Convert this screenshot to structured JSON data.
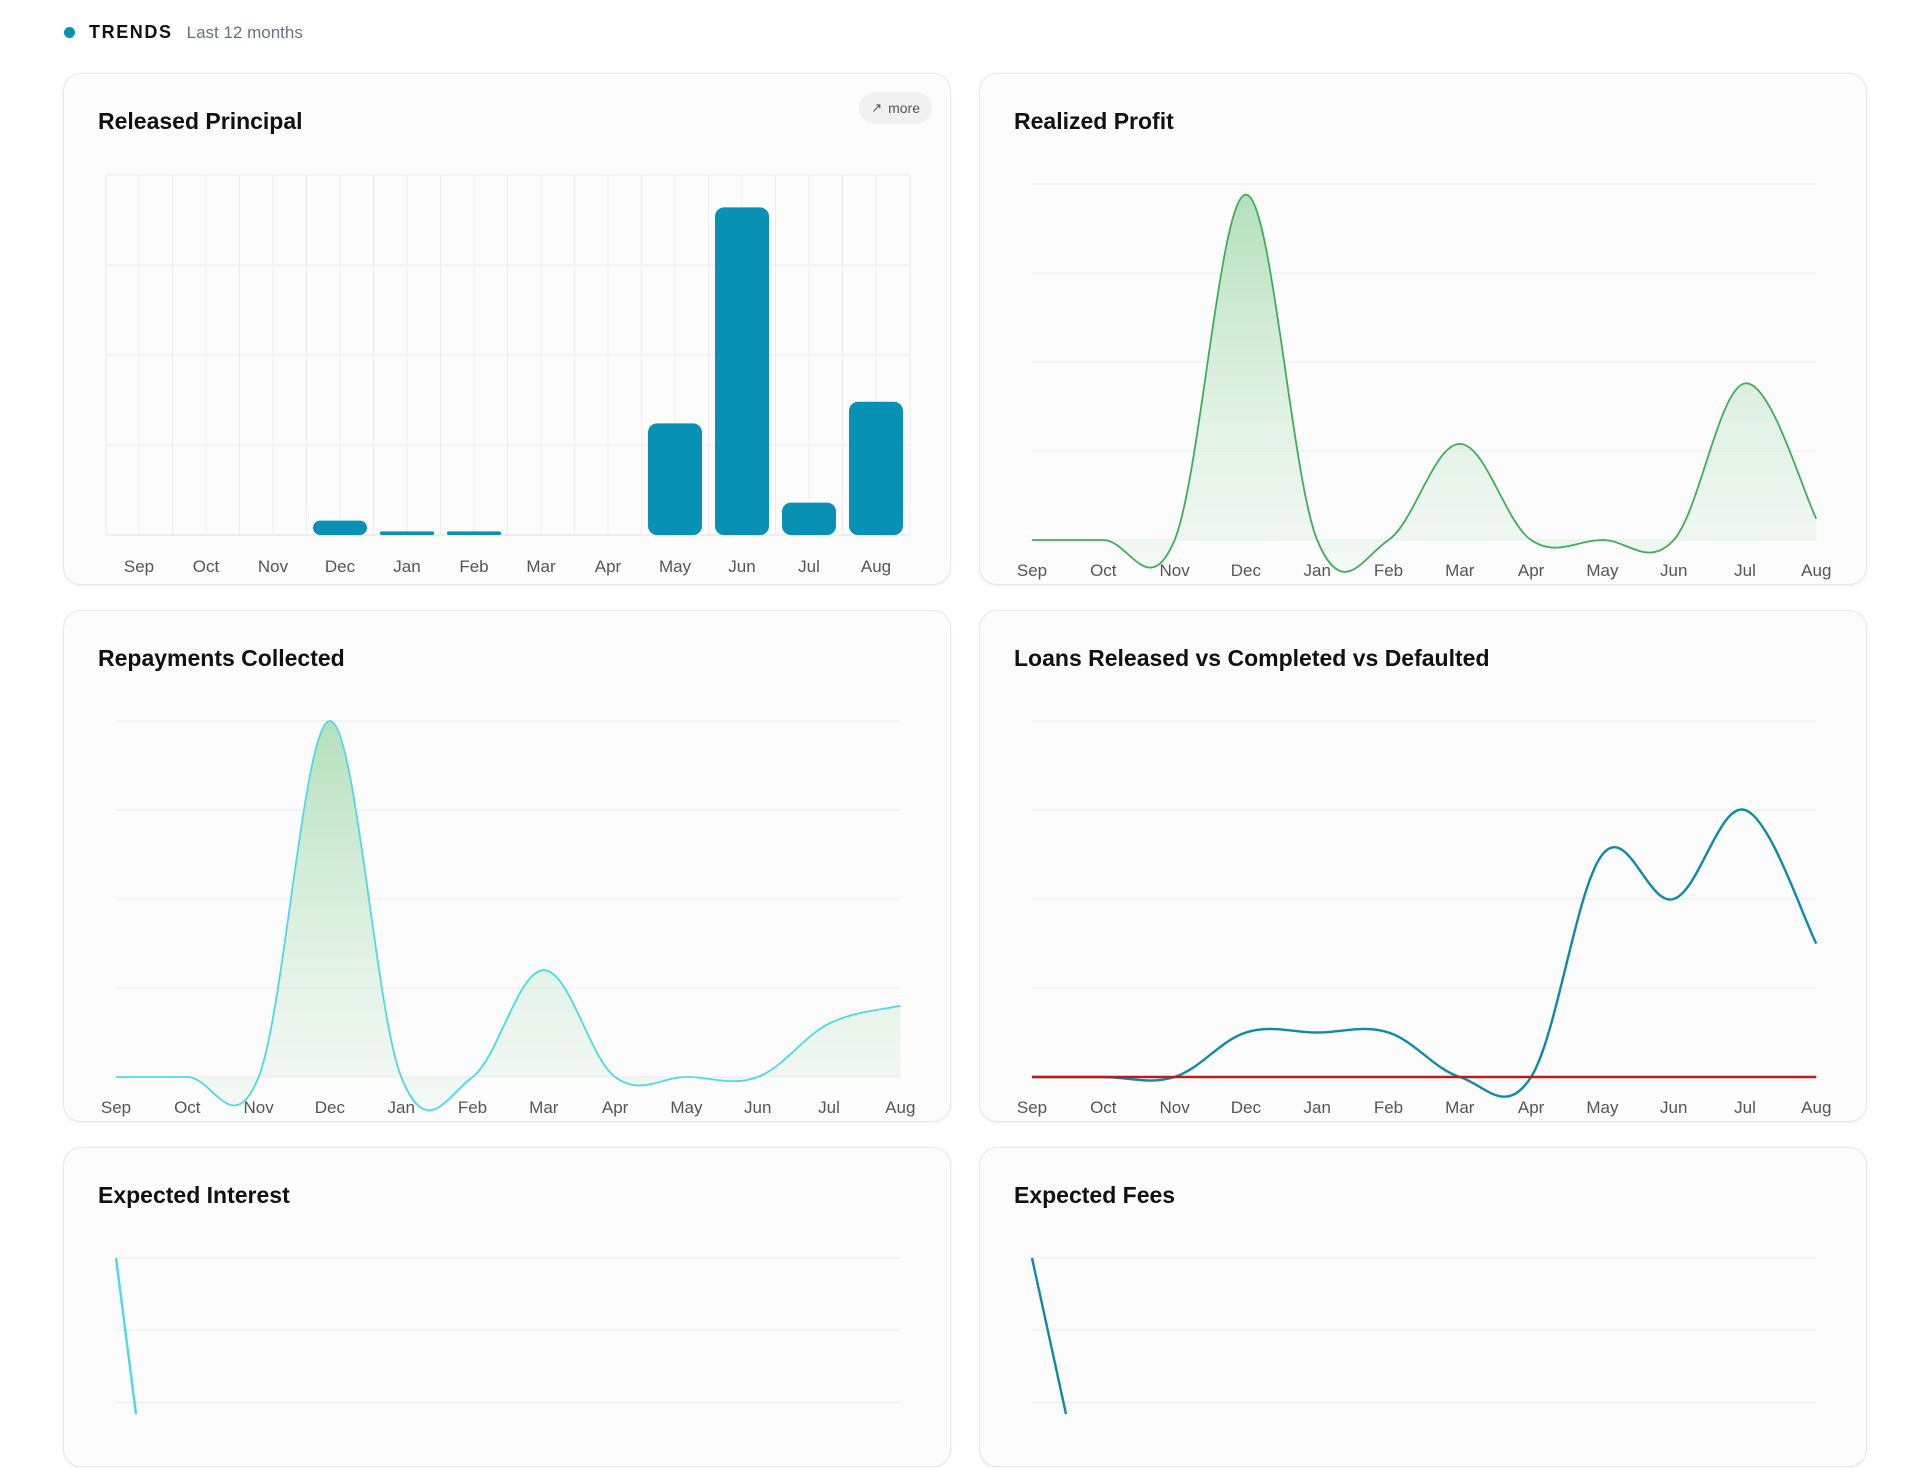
{
  "header": {
    "title": "TRENDS",
    "subtitle": "Last 12 months",
    "accent": "#0891b2"
  },
  "more_button": {
    "label": "more",
    "icon": "arrow-up-right-icon"
  },
  "months": [
    "Sep",
    "Oct",
    "Nov",
    "Dec",
    "Jan",
    "Feb",
    "Mar",
    "Apr",
    "May",
    "Jun",
    "Jul",
    "Aug"
  ],
  "cards": [
    {
      "id": "released-principal",
      "title": "Released Principal",
      "chart_data": {
        "type": "bar",
        "categories": [
          "Sep",
          "Oct",
          "Nov",
          "Dec",
          "Jan",
          "Feb",
          "Mar",
          "Apr",
          "May",
          "Jun",
          "Jul",
          "Aug"
        ],
        "values": [
          0,
          0,
          0,
          4,
          1,
          1,
          0,
          0,
          31,
          91,
          9,
          37
        ],
        "ylim": [
          0,
          100
        ],
        "grid": true,
        "color": "#0891b2"
      }
    },
    {
      "id": "realized-profit",
      "title": "Realized Profit",
      "chart_data": {
        "type": "area",
        "categories": [
          "Sep",
          "Oct",
          "Nov",
          "Dec",
          "Jan",
          "Feb",
          "Mar",
          "Apr",
          "May",
          "Jun",
          "Jul",
          "Aug"
        ],
        "values": [
          0,
          0,
          0,
          97,
          0,
          0,
          27,
          0,
          0,
          0,
          44,
          6
        ],
        "ylim": [
          0,
          100
        ],
        "grid": true,
        "color": "#3fae5a"
      }
    },
    {
      "id": "repayments-collected",
      "title": "Repayments Collected",
      "chart_data": {
        "type": "area",
        "categories": [
          "Sep",
          "Oct",
          "Nov",
          "Dec",
          "Jan",
          "Feb",
          "Mar",
          "Apr",
          "May",
          "Jun",
          "Jul",
          "Aug"
        ],
        "values": [
          0,
          0,
          0,
          100,
          0,
          0,
          30,
          0,
          0,
          0,
          15,
          20
        ],
        "ylim": [
          0,
          100
        ],
        "grid": true,
        "color": "#4dd9e8"
      }
    },
    {
      "id": "loans-released-completed-defaulted",
      "title": "Loans Released vs Completed vs Defaulted",
      "chart_data": {
        "type": "line",
        "categories": [
          "Sep",
          "Oct",
          "Nov",
          "Dec",
          "Jan",
          "Feb",
          "Mar",
          "Apr",
          "May",
          "Jun",
          "Jul",
          "Aug"
        ],
        "series": [
          {
            "values": [
              0,
              0,
              0,
              12.5,
              12.5,
              12.5,
              0,
              0,
              62.5,
              50,
              75,
              37.5
            ],
            "color": "#0e8aa8"
          },
          {
            "values": [
              0,
              0,
              0,
              0,
              0,
              0,
              0,
              0,
              0,
              0,
              0,
              0
            ],
            "color": "#b91c1c"
          }
        ],
        "ylim": [
          0,
          100
        ],
        "grid": true
      }
    },
    {
      "id": "expected-interest",
      "title": "Expected Interest",
      "chart_data": {
        "type": "line",
        "series": [
          {
            "values": [
              100,
              60
            ],
            "color": "#4dd9e8"
          }
        ],
        "ylim": [
          0,
          100
        ],
        "grid": true
      }
    },
    {
      "id": "expected-fees",
      "title": "Expected Fees",
      "chart_data": {
        "type": "line",
        "series": [
          {
            "values": [
              100,
              60
            ],
            "color": "#0e8aa8"
          }
        ],
        "ylim": [
          0,
          100
        ],
        "grid": true
      }
    }
  ]
}
